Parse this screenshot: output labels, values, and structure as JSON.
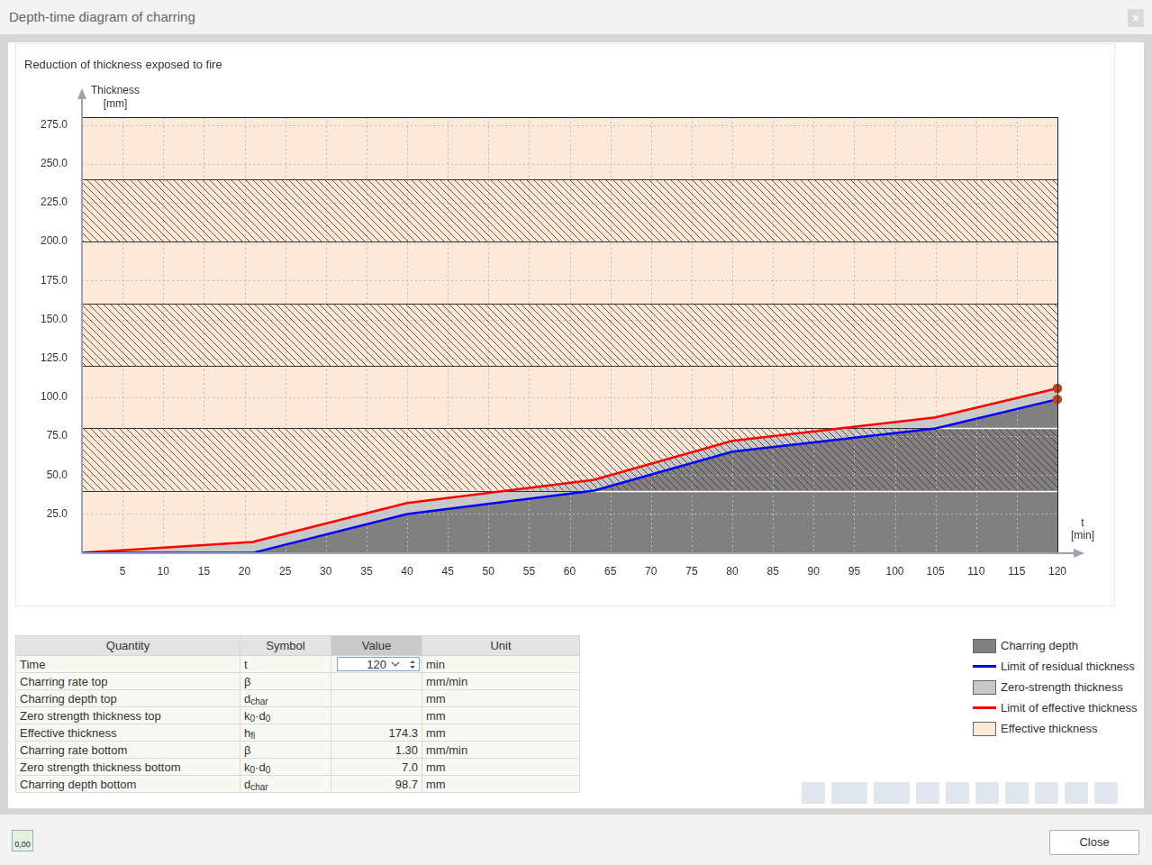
{
  "window": {
    "title": "Depth-time diagram of charring",
    "close_button": "Close",
    "footer_icon": "0,00"
  },
  "chart_data": {
    "type": "line",
    "title": "Reduction of thickness exposed to fire",
    "xlabel": [
      "t",
      "[min]"
    ],
    "ylabel": [
      "Thickness",
      "[mm]"
    ],
    "x": [
      0,
      21,
      40,
      63,
      80,
      105,
      120
    ],
    "xlim": [
      0,
      120
    ],
    "ylim": [
      0,
      280
    ],
    "xticks": [
      5,
      10,
      15,
      20,
      25,
      30,
      35,
      40,
      45,
      50,
      55,
      60,
      65,
      70,
      75,
      80,
      85,
      90,
      95,
      100,
      105,
      110,
      115,
      120
    ],
    "yticks": [
      {
        "value": 25,
        "label": "25.0"
      },
      {
        "value": 50,
        "label": "50.0"
      },
      {
        "value": 75,
        "label": "75.0"
      },
      {
        "value": 100,
        "label": "100.0"
      },
      {
        "value": 125,
        "label": "125.0"
      },
      {
        "value": 150,
        "label": "150.0"
      },
      {
        "value": 175,
        "label": "175.0"
      },
      {
        "value": 200,
        "label": "200.0"
      },
      {
        "value": 225,
        "label": "225.0"
      },
      {
        "value": 250,
        "label": "250.0"
      },
      {
        "value": 275,
        "label": "275.0"
      }
    ],
    "grid": true,
    "legend": "bottom-right",
    "stacked": true,
    "hatched_bands": [
      [
        40,
        80
      ],
      [
        120,
        160
      ],
      [
        200,
        240
      ]
    ],
    "series": [
      {
        "name": "Charring depth",
        "type": "area",
        "color": "#808080",
        "values": [
          0,
          0,
          25,
          40,
          65,
          80,
          98.7
        ]
      },
      {
        "name": "Limit of residual thickness",
        "type": "line",
        "color": "#0000ff",
        "marker": "circle",
        "values": [
          0,
          0,
          25,
          40,
          65,
          80,
          98.7
        ]
      },
      {
        "name": "Zero-strength thickness",
        "type": "area",
        "color": "#c8c8c8",
        "values": [
          0,
          7,
          7,
          7,
          7,
          7,
          7
        ]
      },
      {
        "name": "Limit of effective thickness",
        "type": "line",
        "color": "#ff0000",
        "marker": "circle",
        "values": [
          0,
          7,
          32,
          47,
          72,
          87,
          105.7
        ]
      },
      {
        "name": "Effective thickness",
        "type": "area",
        "color": "#fde9d9",
        "values": [
          280,
          273,
          248,
          233,
          208,
          193,
          174.3
        ]
      }
    ]
  },
  "table": {
    "header": [
      "Quantity",
      "Symbol",
      "Value",
      "Unit"
    ],
    "rows": [
      {
        "quantity": "Time",
        "symbol": [
          {
            "text": "t",
            "sub": false
          }
        ],
        "value": "120",
        "unit": "min",
        "input": true
      },
      {
        "quantity": "Charring rate top",
        "symbol": [
          {
            "text": "β",
            "sub": false
          }
        ],
        "value": null,
        "unit": "mm/min"
      },
      {
        "quantity": "Charring depth top",
        "symbol": [
          {
            "text": "d",
            "sub": false
          },
          {
            "text": "char",
            "sub": true
          }
        ],
        "value": null,
        "unit": "mm"
      },
      {
        "quantity": "Zero strength thickness top",
        "symbol": [
          {
            "text": "k",
            "sub": false
          },
          {
            "text": "0",
            "sub": true
          },
          {
            "text": "·d",
            "sub": false
          },
          {
            "text": "0",
            "sub": true
          }
        ],
        "value": null,
        "unit": "mm"
      },
      {
        "quantity": "Effective thickness",
        "symbol": [
          {
            "text": "h",
            "sub": false
          },
          {
            "text": "fi",
            "sub": true
          }
        ],
        "value": "174.3",
        "unit": "mm"
      },
      {
        "quantity": "Charring rate bottom",
        "symbol": [
          {
            "text": "β",
            "sub": false
          }
        ],
        "value": "1.30",
        "unit": "mm/min"
      },
      {
        "quantity": "Zero strength thickness bottom",
        "symbol": [
          {
            "text": "k",
            "sub": false
          },
          {
            "text": "0",
            "sub": true
          },
          {
            "text": "·d",
            "sub": false
          },
          {
            "text": "0",
            "sub": true
          }
        ],
        "value": "7.0",
        "unit": "mm"
      },
      {
        "quantity": "Charring depth bottom",
        "symbol": [
          {
            "text": "d",
            "sub": false
          },
          {
            "text": "char",
            "sub": true
          }
        ],
        "value": "98.7",
        "unit": "mm"
      }
    ]
  }
}
